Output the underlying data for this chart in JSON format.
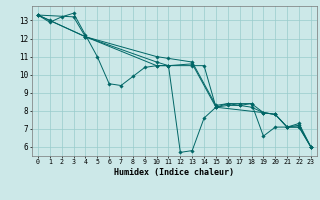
{
  "xlabel": "Humidex (Indice chaleur)",
  "bg_color": "#cce8e8",
  "grid_color": "#99cccc",
  "line_color": "#006666",
  "xlim": [
    -0.5,
    23.5
  ],
  "ylim": [
    5.5,
    13.8
  ],
  "yticks": [
    6,
    7,
    8,
    9,
    10,
    11,
    12,
    13
  ],
  "xticks": [
    0,
    1,
    2,
    3,
    4,
    5,
    6,
    7,
    8,
    9,
    10,
    11,
    12,
    13,
    14,
    15,
    16,
    17,
    18,
    19,
    20,
    21,
    22,
    23
  ],
  "lines": [
    {
      "x": [
        0,
        1,
        2,
        3,
        4,
        5,
        6,
        7,
        8,
        9,
        10,
        11,
        12,
        13,
        14,
        15,
        16,
        17,
        18,
        19,
        20,
        21,
        22,
        23
      ],
      "y": [
        13.3,
        12.9,
        13.2,
        13.4,
        12.2,
        11.0,
        9.5,
        9.4,
        9.9,
        10.4,
        10.5,
        10.5,
        5.7,
        5.8,
        7.6,
        8.2,
        8.4,
        8.4,
        8.4,
        6.6,
        7.1,
        7.1,
        7.2,
        6.0
      ]
    },
    {
      "x": [
        0,
        3,
        4,
        10,
        11,
        13,
        15,
        16,
        17,
        18,
        19,
        20,
        21,
        22,
        23
      ],
      "y": [
        13.3,
        13.2,
        12.1,
        11.0,
        10.9,
        10.7,
        8.3,
        8.4,
        8.3,
        8.4,
        7.9,
        7.8,
        7.1,
        7.1,
        6.0
      ]
    },
    {
      "x": [
        0,
        1,
        4,
        10,
        11,
        13,
        15,
        16,
        17,
        18,
        19,
        20,
        21,
        22,
        23
      ],
      "y": [
        13.3,
        13.0,
        12.1,
        10.7,
        10.5,
        10.6,
        8.2,
        8.3,
        8.3,
        8.2,
        7.9,
        7.8,
        7.1,
        7.3,
        6.0
      ]
    },
    {
      "x": [
        0,
        4,
        10,
        11,
        13,
        14,
        15,
        19,
        20,
        21,
        22,
        23
      ],
      "y": [
        13.3,
        12.1,
        10.5,
        10.5,
        10.5,
        10.5,
        8.2,
        7.9,
        7.8,
        7.1,
        7.1,
        6.0
      ]
    }
  ]
}
